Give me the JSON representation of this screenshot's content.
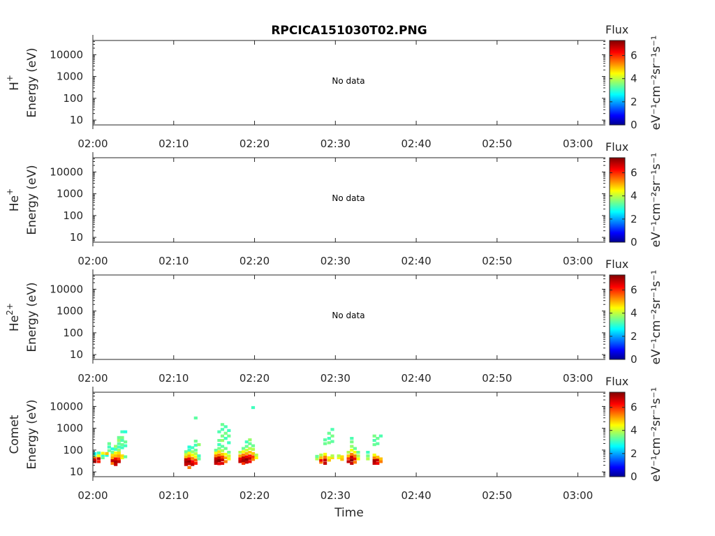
{
  "chart_data": {
    "type": "heatmap",
    "title": "RPCICA151030T02.PNG",
    "xlabel": "Time",
    "x_tick_labels": [
      "02:00",
      "02:10",
      "02:20",
      "02:30",
      "02:40",
      "02:50",
      "03:00"
    ],
    "x_ticks_min": [
      0,
      10,
      20,
      30,
      40,
      50,
      60
    ],
    "xlim_min": [
      0,
      63.4
    ],
    "y_scale": "log",
    "y_tick_labels": [
      "10",
      "100",
      "1000",
      "10000"
    ],
    "y_ticks": [
      10,
      100,
      1000,
      10000
    ],
    "ylim": [
      6,
      45000
    ],
    "colorbar": {
      "label": "Flux",
      "unit_label": "eV⁻¹cm⁻²sr⁻¹s⁻¹",
      "tick_labels": [
        "0",
        "2",
        "4",
        "6"
      ],
      "ticks": [
        0,
        2,
        4,
        6
      ],
      "range": [
        0,
        7.3
      ],
      "colormap": "jet"
    },
    "panels": [
      {
        "species": "H",
        "charge": "+",
        "ylabel": "Energy (eV)",
        "message": "No data",
        "cells": []
      },
      {
        "species": "He",
        "charge": "+",
        "ylabel": "Energy (eV)",
        "message": "No data",
        "cells": []
      },
      {
        "species": "He",
        "charge": "2+",
        "ylabel": "Energy (eV)",
        "message": "No data",
        "cells": []
      },
      {
        "species": "Comet",
        "charge": "",
        "ylabel": "Energy (eV)",
        "message": "",
        "cells": [
          [
            0.0,
            30,
            7.0
          ],
          [
            0.0,
            40,
            6.5
          ],
          [
            0.0,
            48,
            5.5
          ],
          [
            0.0,
            58,
            3.5
          ],
          [
            0.0,
            70,
            2.8
          ],
          [
            0.5,
            30,
            6.2
          ],
          [
            0.5,
            42,
            6.8
          ],
          [
            0.5,
            55,
            4.5
          ],
          [
            0.5,
            75,
            3.2
          ],
          [
            1.0,
            45,
            3.5
          ],
          [
            1.0,
            60,
            3.0
          ],
          [
            1.0,
            72,
            4.5
          ],
          [
            1.5,
            58,
            3.0
          ],
          [
            1.5,
            70,
            5.0
          ],
          [
            1.8,
            95,
            3.5
          ],
          [
            1.8,
            140,
            3.2
          ],
          [
            1.8,
            200,
            3.5
          ],
          [
            2.2,
            25,
            5.5
          ],
          [
            2.2,
            33,
            6.8
          ],
          [
            2.2,
            45,
            5.2
          ],
          [
            2.2,
            60,
            4.8
          ],
          [
            2.2,
            80,
            3.5
          ],
          [
            2.2,
            115,
            3.0
          ],
          [
            2.6,
            22,
            6.8
          ],
          [
            2.6,
            30,
            7.0
          ],
          [
            2.6,
            40,
            6.5
          ],
          [
            2.6,
            55,
            5.0
          ],
          [
            2.6,
            75,
            4.5
          ],
          [
            2.6,
            110,
            3.2
          ],
          [
            2.6,
            150,
            3.8
          ],
          [
            3.0,
            30,
            6.8
          ],
          [
            3.0,
            40,
            6.0
          ],
          [
            3.0,
            55,
            5.2
          ],
          [
            3.0,
            75,
            4.8
          ],
          [
            3.0,
            100,
            3.8
          ],
          [
            3.0,
            140,
            3.2
          ],
          [
            3.0,
            200,
            3.4
          ],
          [
            3.0,
            280,
            3.8
          ],
          [
            3.0,
            380,
            3.5
          ],
          [
            3.4,
            45,
            4.5
          ],
          [
            3.4,
            55,
            4.8
          ],
          [
            3.4,
            130,
            3.2
          ],
          [
            3.4,
            180,
            3.5
          ],
          [
            3.4,
            280,
            3.3
          ],
          [
            3.4,
            380,
            3.6
          ],
          [
            3.4,
            700,
            3.2
          ],
          [
            3.8,
            50,
            3.5
          ],
          [
            3.8,
            160,
            3.2
          ],
          [
            3.8,
            240,
            3.5
          ],
          [
            3.8,
            700,
            3.0
          ],
          [
            11.3,
            22,
            6.8
          ],
          [
            11.3,
            30,
            7.0
          ],
          [
            11.3,
            38,
            6.8
          ],
          [
            11.3,
            50,
            5.0
          ],
          [
            11.3,
            65,
            4.2
          ],
          [
            11.3,
            85,
            3.5
          ],
          [
            11.7,
            16,
            5.5
          ],
          [
            11.7,
            24,
            6.8
          ],
          [
            11.7,
            32,
            7.2
          ],
          [
            11.7,
            40,
            6.5
          ],
          [
            11.7,
            55,
            5.2
          ],
          [
            11.7,
            75,
            4.5
          ],
          [
            11.7,
            100,
            3.2
          ],
          [
            11.7,
            140,
            3.0
          ],
          [
            12.1,
            22,
            6.8
          ],
          [
            12.1,
            30,
            6.5
          ],
          [
            12.1,
            42,
            5.5
          ],
          [
            12.1,
            60,
            4.5
          ],
          [
            12.1,
            85,
            3.8
          ],
          [
            12.1,
            130,
            3.2
          ],
          [
            12.5,
            25,
            6.2
          ],
          [
            12.5,
            35,
            5.8
          ],
          [
            12.5,
            50,
            4.5
          ],
          [
            12.5,
            70,
            4.0
          ],
          [
            12.5,
            100,
            3.5
          ],
          [
            12.5,
            170,
            3.2
          ],
          [
            12.5,
            260,
            3.5
          ],
          [
            12.5,
            3000,
            3.4
          ],
          [
            12.9,
            40,
            3.5
          ],
          [
            12.9,
            55,
            3.2
          ],
          [
            12.9,
            180,
            3.8
          ],
          [
            15.0,
            25,
            6.8
          ],
          [
            15.0,
            32,
            7.0
          ],
          [
            15.0,
            42,
            6.8
          ],
          [
            15.0,
            55,
            5.5
          ],
          [
            15.0,
            75,
            4.5
          ],
          [
            15.0,
            100,
            3.5
          ],
          [
            15.4,
            24,
            6.5
          ],
          [
            15.4,
            33,
            7.2
          ],
          [
            15.4,
            45,
            6.8
          ],
          [
            15.4,
            60,
            5.5
          ],
          [
            15.4,
            85,
            4.8
          ],
          [
            15.4,
            120,
            3.6
          ],
          [
            15.4,
            180,
            3.2
          ],
          [
            15.4,
            280,
            3.5
          ],
          [
            15.4,
            700,
            3.3
          ],
          [
            15.8,
            25,
            6.6
          ],
          [
            15.8,
            36,
            6.8
          ],
          [
            15.8,
            48,
            6.0
          ],
          [
            15.8,
            65,
            5.0
          ],
          [
            15.8,
            95,
            4.0
          ],
          [
            15.8,
            150,
            3.4
          ],
          [
            15.8,
            280,
            3.8
          ],
          [
            15.8,
            450,
            3.6
          ],
          [
            15.8,
            900,
            3.3
          ],
          [
            15.8,
            1500,
            3.5
          ],
          [
            16.2,
            30,
            5.5
          ],
          [
            16.2,
            45,
            5.2
          ],
          [
            16.2,
            65,
            4.5
          ],
          [
            16.2,
            120,
            3.5
          ],
          [
            16.2,
            350,
            3.2
          ],
          [
            16.2,
            600,
            3.6
          ],
          [
            16.2,
            1200,
            3.3
          ],
          [
            16.6,
            40,
            4.5
          ],
          [
            16.6,
            55,
            4.2
          ],
          [
            16.6,
            80,
            3.5
          ],
          [
            16.6,
            220,
            3.2
          ],
          [
            16.6,
            450,
            3.5
          ],
          [
            16.6,
            800,
            3.2
          ],
          [
            18.0,
            30,
            6.8
          ],
          [
            18.0,
            40,
            6.5
          ],
          [
            18.0,
            55,
            5.2
          ],
          [
            18.0,
            80,
            4.0
          ],
          [
            18.4,
            25,
            6.0
          ],
          [
            18.4,
            33,
            7.0
          ],
          [
            18.4,
            45,
            6.8
          ],
          [
            18.4,
            60,
            5.5
          ],
          [
            18.4,
            85,
            4.5
          ],
          [
            18.4,
            120,
            3.5
          ],
          [
            18.8,
            28,
            6.8
          ],
          [
            18.8,
            38,
            7.2
          ],
          [
            18.8,
            50,
            6.5
          ],
          [
            18.8,
            70,
            5.2
          ],
          [
            18.8,
            100,
            4.2
          ],
          [
            18.8,
            150,
            3.5
          ],
          [
            18.8,
            240,
            3.2
          ],
          [
            19.2,
            30,
            6.5
          ],
          [
            19.2,
            42,
            6.8
          ],
          [
            19.2,
            55,
            6.2
          ],
          [
            19.2,
            80,
            5.0
          ],
          [
            19.2,
            120,
            4.0
          ],
          [
            19.2,
            200,
            3.5
          ],
          [
            19.2,
            300,
            3.8
          ],
          [
            19.6,
            38,
            5.5
          ],
          [
            19.6,
            50,
            6.0
          ],
          [
            19.6,
            70,
            5.0
          ],
          [
            19.6,
            110,
            4.0
          ],
          [
            19.6,
            160,
            3.5
          ],
          [
            19.6,
            9000,
            3.2
          ],
          [
            20.0,
            45,
            4.5
          ],
          [
            20.0,
            60,
            4.0
          ],
          [
            27.5,
            40,
            4.0
          ],
          [
            27.5,
            52,
            3.5
          ],
          [
            28.0,
            28,
            5.5
          ],
          [
            28.0,
            35,
            6.5
          ],
          [
            28.0,
            45,
            5.0
          ],
          [
            28.0,
            60,
            4.0
          ],
          [
            28.5,
            25,
            6.8
          ],
          [
            28.5,
            35,
            6.8
          ],
          [
            28.5,
            48,
            5.5
          ],
          [
            28.5,
            65,
            4.5
          ],
          [
            28.5,
            200,
            3.5
          ],
          [
            28.5,
            300,
            3.4
          ],
          [
            29.0,
            35,
            5.0
          ],
          [
            29.0,
            45,
            4.5
          ],
          [
            29.0,
            220,
            3.6
          ],
          [
            29.0,
            350,
            3.2
          ],
          [
            29.0,
            600,
            3.5
          ],
          [
            29.4,
            45,
            4.8
          ],
          [
            29.4,
            55,
            4.0
          ],
          [
            29.4,
            250,
            3.4
          ],
          [
            29.4,
            450,
            3.6
          ],
          [
            29.4,
            900,
            3.3
          ],
          [
            30.2,
            45,
            4.5
          ],
          [
            30.2,
            55,
            4.0
          ],
          [
            30.6,
            38,
            5.0
          ],
          [
            30.6,
            50,
            4.8
          ],
          [
            31.4,
            30,
            6.8
          ],
          [
            31.4,
            42,
            6.0
          ],
          [
            31.4,
            55,
            5.0
          ],
          [
            31.4,
            80,
            4.0
          ],
          [
            31.8,
            25,
            6.8
          ],
          [
            31.8,
            35,
            7.2
          ],
          [
            31.8,
            48,
            6.8
          ],
          [
            31.8,
            65,
            5.5
          ],
          [
            31.8,
            100,
            4.5
          ],
          [
            31.8,
            150,
            3.8
          ],
          [
            31.8,
            240,
            3.6
          ],
          [
            31.8,
            350,
            3.3
          ],
          [
            32.2,
            28,
            5.5
          ],
          [
            32.2,
            40,
            6.5
          ],
          [
            32.2,
            55,
            5.5
          ],
          [
            32.2,
            80,
            4.5
          ],
          [
            32.2,
            120,
            3.5
          ],
          [
            32.6,
            40,
            4.5
          ],
          [
            32.6,
            55,
            4.0
          ],
          [
            32.6,
            80,
            3.5
          ],
          [
            33.8,
            40,
            4.0
          ],
          [
            33.8,
            55,
            3.6
          ],
          [
            33.8,
            80,
            3.2
          ],
          [
            34.6,
            25,
            6.8
          ],
          [
            34.6,
            33,
            7.0
          ],
          [
            34.6,
            45,
            5.5
          ],
          [
            34.6,
            60,
            4.5
          ],
          [
            34.6,
            180,
            3.5
          ],
          [
            34.6,
            280,
            3.3
          ],
          [
            34.6,
            450,
            3.6
          ],
          [
            35.0,
            25,
            6.5
          ],
          [
            35.0,
            35,
            6.8
          ],
          [
            35.0,
            48,
            5.0
          ],
          [
            35.0,
            200,
            3.4
          ],
          [
            35.0,
            350,
            3.5
          ],
          [
            35.4,
            30,
            5.5
          ],
          [
            35.4,
            40,
            5.0
          ],
          [
            35.4,
            450,
            3.3
          ]
        ]
      }
    ]
  }
}
